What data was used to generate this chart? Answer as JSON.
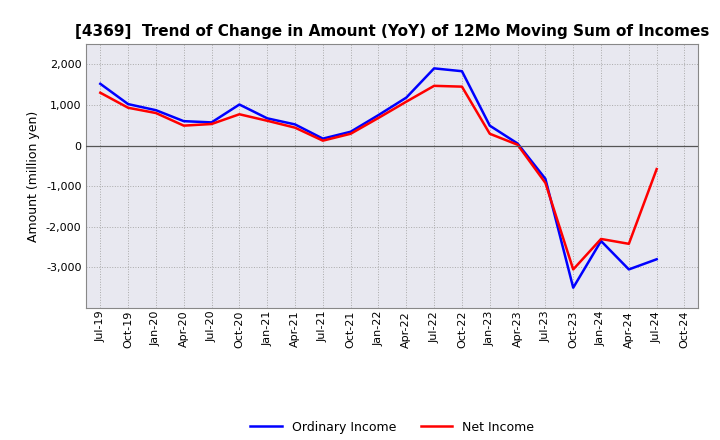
{
  "title": "[4369]  Trend of Change in Amount (YoY) of 12Mo Moving Sum of Incomes",
  "ylabel": "Amount (million yen)",
  "x_labels": [
    "Jul-19",
    "Oct-19",
    "Jan-20",
    "Apr-20",
    "Jul-20",
    "Oct-20",
    "Jan-21",
    "Apr-21",
    "Jul-21",
    "Oct-21",
    "Jan-22",
    "Apr-22",
    "Jul-22",
    "Oct-22",
    "Jan-23",
    "Apr-23",
    "Jul-23",
    "Oct-23",
    "Jan-24",
    "Apr-24",
    "Jul-24",
    "Oct-24"
  ],
  "ordinary_income": [
    1520,
    1020,
    870,
    600,
    570,
    1010,
    670,
    520,
    170,
    340,
    750,
    1180,
    1900,
    1830,
    490,
    50,
    -820,
    -3500,
    -2350,
    -3050,
    -2800,
    null
  ],
  "net_income": [
    1300,
    930,
    800,
    490,
    530,
    770,
    610,
    440,
    120,
    290,
    680,
    1080,
    1470,
    1450,
    290,
    20,
    -920,
    -3050,
    -2300,
    -2420,
    -580,
    null
  ],
  "ordinary_income_color": "#0000FF",
  "net_income_color": "#FF0000",
  "background_color": "#FFFFFF",
  "plot_bg_color": "#E8E8F0",
  "grid_color": "#AAAAAA",
  "ylim": [
    -4000,
    2500
  ],
  "yticks": [
    -3000,
    -2000,
    -1000,
    0,
    1000,
    2000
  ],
  "line_width": 1.8,
  "title_fontsize": 11,
  "axis_label_fontsize": 9,
  "tick_fontsize": 8,
  "legend_fontsize": 9
}
